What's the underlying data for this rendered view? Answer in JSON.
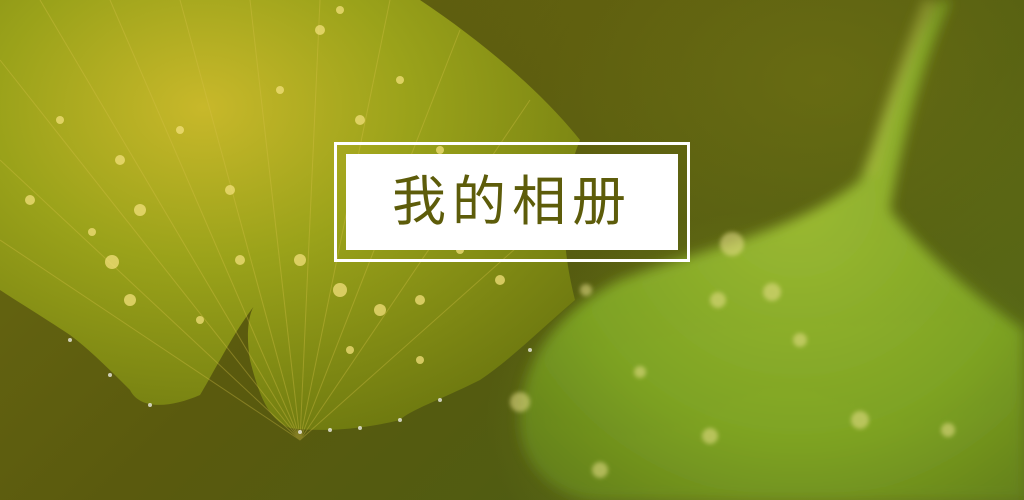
{
  "title": "我的相册",
  "colors": {
    "title_text": "#5d5c0a",
    "frame": "#ffffff",
    "leaf_front": "#9aa21a",
    "leaf_back": "#7fa524",
    "background": "#5a5a0e"
  }
}
